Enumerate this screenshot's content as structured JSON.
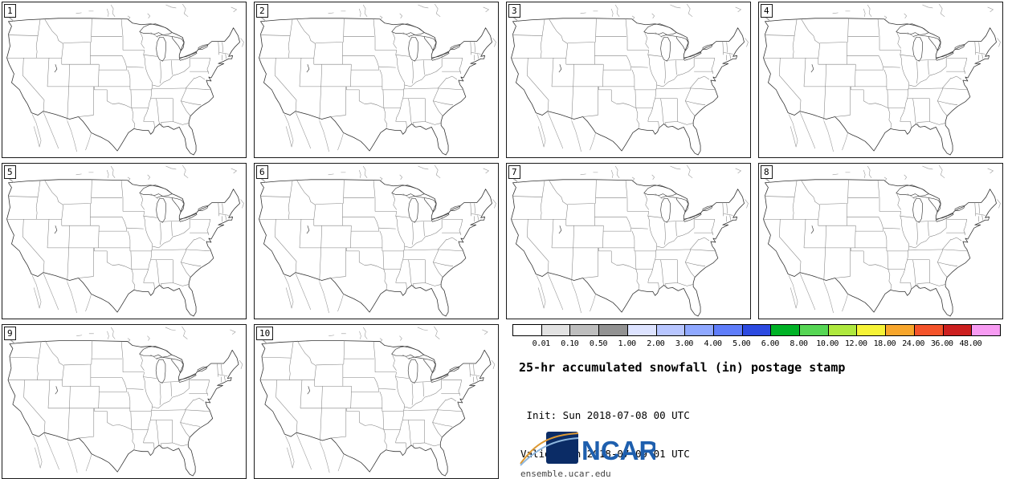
{
  "product": {
    "title": "25-hr accumulated snowfall (in) postage stamp",
    "init": " Init: Sun 2018-07-08 00 UTC",
    "valid": "Valid: Mon 2018-07-09 01 UTC"
  },
  "panels": [
    {
      "member": "1"
    },
    {
      "member": "2"
    },
    {
      "member": "3"
    },
    {
      "member": "4"
    },
    {
      "member": "5"
    },
    {
      "member": "6"
    },
    {
      "member": "7"
    },
    {
      "member": "8"
    },
    {
      "member": "9"
    },
    {
      "member": "10"
    }
  ],
  "colorbar": {
    "tick_labels": [
      "0.01",
      "0.10",
      "0.50",
      "1.00",
      "2.00",
      "3.00",
      "4.00",
      "5.00",
      "6.00",
      "8.00",
      "10.00",
      "12.00",
      "18.00",
      "24.00",
      "36.00",
      "48.00"
    ],
    "segment_colors": [
      "#ffffff",
      "#e2e2e2",
      "#bdbdbd",
      "#929292",
      "#dde3ff",
      "#b8c6ff",
      "#8fa8ff",
      "#5f7dfa",
      "#2c4ae0",
      "#00b226",
      "#56d654",
      "#aee83e",
      "#f6f337",
      "#f7a62c",
      "#f4532a",
      "#cc1f1f",
      "#f79bf2"
    ]
  },
  "branding": {
    "org": "NCAR",
    "site": "ensemble.ucar.edu"
  }
}
